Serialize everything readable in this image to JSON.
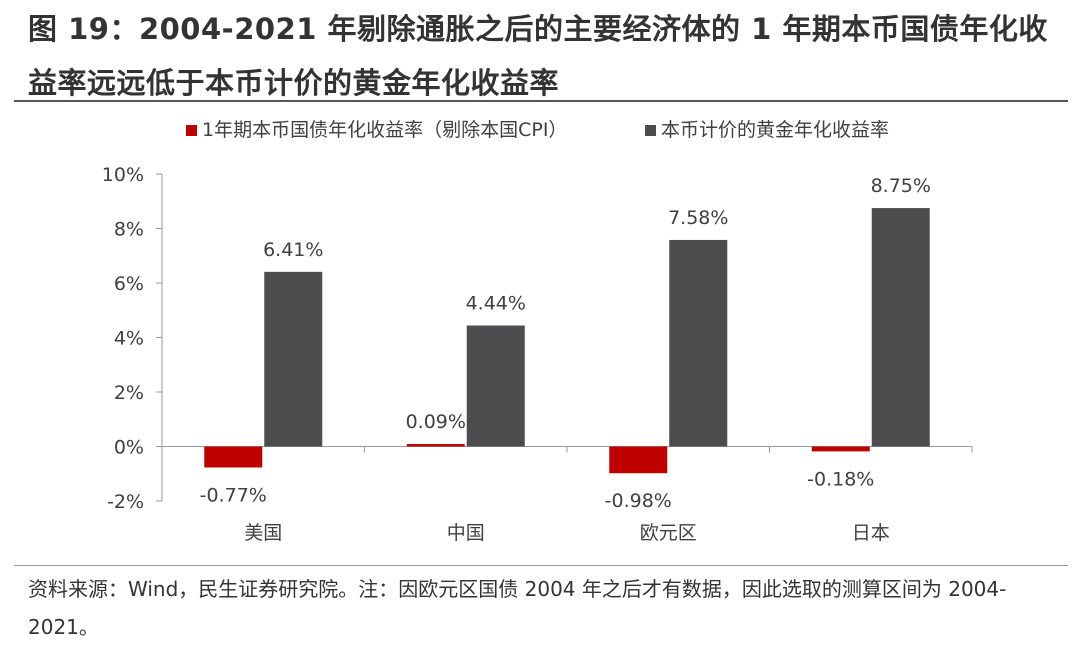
{
  "title": "图 19：2004-2021 年剔除通胀之后的主要经济体的 1 年期本币国债年化收益率远远低于本币计价的黄金年化收益率",
  "source_note": "资料来源：Wind，民生证券研究院。注：因欧元区国债 2004 年之后才有数据，因此选取的测算区间为 2004-2021。",
  "chart_data": {
    "type": "bar",
    "categories": [
      "美国",
      "中国",
      "欧元区",
      "日本"
    ],
    "series": [
      {
        "name": "1年期本币国债年化收益率（剔除本国CPI）",
        "color": "#C00000",
        "values": [
          -0.77,
          0.09,
          -0.98,
          -0.18
        ],
        "labels": [
          "-0.77%",
          "0.09%",
          "-0.98%",
          "-0.18%"
        ]
      },
      {
        "name": "本币计价的黄金年化收益率",
        "color": "#4D4D4F",
        "values": [
          6.41,
          4.44,
          7.58,
          8.75
        ],
        "labels": [
          "6.41%",
          "4.44%",
          "7.58%",
          "8.75%"
        ]
      }
    ],
    "yticks": [
      "10%",
      "8%",
      "6%",
      "4%",
      "2%",
      "0%",
      "-2%"
    ],
    "ytick_values": [
      10,
      8,
      6,
      4,
      2,
      0,
      -2
    ],
    "ylim": [
      -2,
      10
    ],
    "legend_position": "top"
  }
}
